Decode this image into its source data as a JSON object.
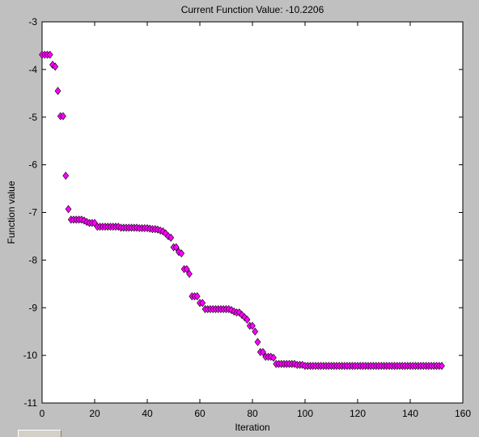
{
  "chart_data": {
    "type": "scatter",
    "title": "Current Function Value: -10.2206",
    "xlabel": "Iteration",
    "ylabel": "Function value",
    "xlim": [
      0,
      160
    ],
    "ylim": [
      -11,
      -3
    ],
    "xticks": [
      0,
      20,
      40,
      60,
      80,
      100,
      120,
      140,
      160
    ],
    "yticks": [
      -11,
      -10,
      -9,
      -8,
      -7,
      -6,
      -5,
      -4,
      -3
    ],
    "grid": false,
    "marker": "diamond",
    "marker_color": "#ff00ff",
    "marker_edge_color": "#000000",
    "series": [
      {
        "x": [
          0,
          1,
          2,
          3,
          4,
          5,
          6,
          7,
          8,
          9,
          10,
          11,
          12,
          13,
          14,
          15,
          16,
          17,
          18,
          19,
          20,
          21,
          22,
          23,
          24,
          25,
          26,
          27,
          28,
          29,
          30,
          31,
          32,
          33,
          34,
          35,
          36,
          37,
          38,
          39,
          40,
          41,
          42,
          43,
          44,
          45,
          46,
          47,
          48,
          49,
          50,
          51,
          52,
          53,
          54,
          55,
          56,
          57,
          58,
          59,
          60,
          61,
          62,
          63,
          64,
          65,
          66,
          67,
          68,
          69,
          70,
          71,
          72,
          73,
          74,
          75,
          76,
          77,
          78,
          79,
          80,
          81,
          82,
          83,
          84,
          85,
          86,
          87,
          88,
          89,
          90,
          91,
          92,
          93,
          94,
          95,
          96,
          97,
          98,
          99,
          100,
          101,
          102,
          103,
          104,
          105,
          106,
          107,
          108,
          109,
          110,
          111,
          112,
          113,
          114,
          115,
          116,
          117,
          118,
          119,
          120,
          121,
          122,
          123,
          124,
          125,
          126,
          127,
          128,
          129,
          130,
          131,
          132,
          133,
          134,
          135,
          136,
          137,
          138,
          139,
          140,
          141,
          142,
          143,
          144,
          145,
          146,
          147,
          148,
          149,
          150,
          151,
          152
        ],
        "y": [
          -3.69,
          -3.69,
          -3.69,
          -3.69,
          -3.9,
          -3.94,
          -4.45,
          -4.98,
          -4.98,
          -6.23,
          -6.93,
          -7.15,
          -7.15,
          -7.15,
          -7.15,
          -7.15,
          -7.17,
          -7.2,
          -7.22,
          -7.22,
          -7.22,
          -7.3,
          -7.3,
          -7.3,
          -7.3,
          -7.3,
          -7.3,
          -7.3,
          -7.3,
          -7.3,
          -7.32,
          -7.32,
          -7.32,
          -7.32,
          -7.32,
          -7.32,
          -7.32,
          -7.33,
          -7.33,
          -7.33,
          -7.33,
          -7.34,
          -7.35,
          -7.35,
          -7.36,
          -7.38,
          -7.4,
          -7.44,
          -7.5,
          -7.53,
          -7.73,
          -7.73,
          -7.83,
          -7.86,
          -8.19,
          -8.19,
          -8.29,
          -8.76,
          -8.76,
          -8.76,
          -8.9,
          -8.9,
          -9.03,
          -9.03,
          -9.03,
          -9.03,
          -9.03,
          -9.03,
          -9.03,
          -9.03,
          -9.03,
          -9.03,
          -9.05,
          -9.08,
          -9.1,
          -9.1,
          -9.15,
          -9.2,
          -9.25,
          -9.38,
          -9.38,
          -9.5,
          -9.72,
          -9.93,
          -9.93,
          -10.03,
          -10.03,
          -10.03,
          -10.05,
          -10.18,
          -10.18,
          -10.18,
          -10.18,
          -10.18,
          -10.18,
          -10.18,
          -10.18,
          -10.2,
          -10.2,
          -10.2,
          -10.22,
          -10.22,
          -10.22,
          -10.22,
          -10.22,
          -10.22,
          -10.22,
          -10.22,
          -10.22,
          -10.22,
          -10.22,
          -10.22,
          -10.22,
          -10.22,
          -10.22,
          -10.22,
          -10.22,
          -10.22,
          -10.22,
          -10.22,
          -10.22,
          -10.22,
          -10.22,
          -10.22,
          -10.22,
          -10.22,
          -10.22,
          -10.22,
          -10.22,
          -10.22,
          -10.22,
          -10.22,
          -10.22,
          -10.22,
          -10.22,
          -10.22,
          -10.22,
          -10.22,
          -10.22,
          -10.22,
          -10.22,
          -10.22,
          -10.22,
          -10.22,
          -10.22,
          -10.22,
          -10.22,
          -10.22,
          -10.22,
          -10.22,
          -10.22,
          -10.22,
          -10.22
        ]
      }
    ]
  }
}
